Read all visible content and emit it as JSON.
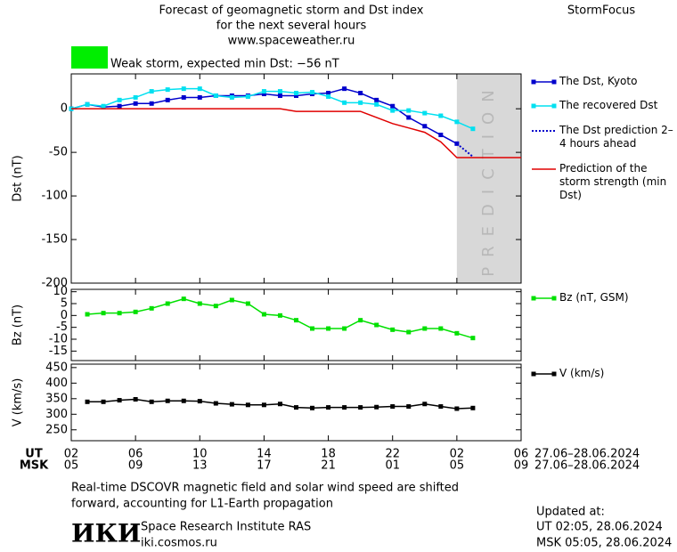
{
  "header": {
    "title": [
      "Forecast of geomagnetic storm and Dst index",
      "for the next several hours",
      "www.spaceweather.ru"
    ],
    "brand": "StormFocus",
    "status": "Weak storm, expected min Dst: −56 nT"
  },
  "chart_data": [
    {
      "type": "line",
      "y_label": "Dst (nT)",
      "xlim": [
        0,
        28
      ],
      "ylim": [
        -200,
        40
      ],
      "yticks": [
        0,
        -50,
        -100,
        -150,
        -200
      ],
      "prediction_region": {
        "x": [
          24,
          28
        ],
        "label": "PREDICTION",
        "color": "#d8d8d8"
      },
      "series": [
        {
          "name": "The Dst, Kyoto",
          "color": "#0000cc",
          "marker": "square",
          "line": "solid",
          "x": [
            0,
            1,
            2,
            3,
            4,
            5,
            6,
            7,
            8,
            9,
            10,
            11,
            12,
            13,
            14,
            15,
            16,
            17,
            18,
            19,
            20,
            21,
            22,
            23,
            24
          ],
          "values": [
            0,
            5,
            2,
            3,
            6,
            6,
            10,
            13,
            13,
            15,
            15,
            15,
            17,
            15,
            15,
            17,
            18,
            23,
            18,
            10,
            3,
            -10,
            -20,
            -30,
            -40
          ]
        },
        {
          "name": "The recovered Dst",
          "color": "#00e0f0",
          "marker": "square",
          "line": "solid",
          "x": [
            0,
            1,
            2,
            3,
            4,
            5,
            6,
            7,
            8,
            9,
            10,
            11,
            12,
            13,
            14,
            15,
            16,
            17,
            18,
            19,
            20,
            21,
            22,
            23,
            24,
            25
          ],
          "values": [
            0,
            5,
            3,
            10,
            13,
            20,
            22,
            23,
            23,
            15,
            13,
            14,
            20,
            20,
            18,
            19,
            14,
            7,
            7,
            5,
            -2,
            -2,
            -5,
            -8,
            -15,
            -23
          ]
        },
        {
          "name": "The Dst prediction 2–4 hours ahead",
          "color": "#0000cc",
          "marker": "none",
          "line": "dotted",
          "x": [
            24,
            25
          ],
          "values": [
            -40,
            -55
          ]
        },
        {
          "name": "Prediction of the storm strength (min Dst)",
          "color": "#e00000",
          "marker": "none",
          "line": "solid",
          "x": [
            0,
            13,
            14,
            18,
            19,
            20,
            21,
            22,
            23,
            24,
            28
          ],
          "values": [
            0,
            0,
            -3,
            -3,
            -10,
            -17,
            -22,
            -27,
            -38,
            -56,
            -56
          ]
        }
      ]
    },
    {
      "type": "line",
      "y_label": "Bz (nT)",
      "xlim": [
        0,
        28
      ],
      "ylim": [
        -19,
        11
      ],
      "yticks": [
        10,
        5,
        0,
        -5,
        -10,
        -15
      ],
      "series": [
        {
          "name": "Bz (nT, GSM)",
          "color": "#00e000",
          "marker": "square",
          "line": "solid",
          "x": [
            1,
            2,
            3,
            4,
            5,
            6,
            7,
            8,
            9,
            10,
            11,
            12,
            13,
            14,
            15,
            16,
            17,
            18,
            19,
            20,
            21,
            22,
            23,
            24,
            25
          ],
          "values": [
            0.5,
            1,
            1,
            1.5,
            3,
            5,
            7,
            5,
            4,
            6.5,
            5,
            0.5,
            0,
            -2,
            -5.5,
            -5.5,
            -5.5,
            -2,
            -4,
            -6,
            -7,
            -5.5,
            -5.5,
            -7.5,
            -9.5
          ]
        }
      ]
    },
    {
      "type": "line",
      "y_label": "V (km/s)",
      "xlim": [
        0,
        28
      ],
      "ylim": [
        215,
        461
      ],
      "yticks": [
        450,
        400,
        350,
        300,
        250
      ],
      "xticks": [
        {
          "value": 0,
          "label": "02"
        },
        {
          "value": 4,
          "label": "06"
        },
        {
          "value": 8,
          "label": "10"
        },
        {
          "value": 12,
          "label": "14"
        },
        {
          "value": 16,
          "label": "18"
        },
        {
          "value": 20,
          "label": "22"
        },
        {
          "value": 24,
          "label": "02"
        },
        {
          "value": 28,
          "label": "06"
        }
      ],
      "xticks_msk": [
        {
          "value": 0,
          "label": "05"
        },
        {
          "value": 4,
          "label": "09"
        },
        {
          "value": 8,
          "label": "13"
        },
        {
          "value": 12,
          "label": "17"
        },
        {
          "value": 16,
          "label": "21"
        },
        {
          "value": 20,
          "label": "01"
        },
        {
          "value": 24,
          "label": "05"
        },
        {
          "value": 28,
          "label": "09"
        }
      ],
      "series": [
        {
          "name": "V (km/s)",
          "color": "#000000",
          "marker": "square",
          "line": "solid",
          "x": [
            1,
            2,
            3,
            4,
            5,
            6,
            7,
            8,
            9,
            10,
            11,
            12,
            13,
            14,
            15,
            16,
            17,
            18,
            19,
            20,
            21,
            22,
            23,
            24,
            25
          ],
          "values": [
            340,
            340,
            345,
            348,
            340,
            343,
            343,
            342,
            335,
            332,
            330,
            330,
            333,
            322,
            320,
            322,
            322,
            322,
            323,
            325,
            325,
            333,
            325,
            318,
            320
          ]
        }
      ]
    }
  ],
  "footer": {
    "ut_label": "UT",
    "msk_label": "MSK",
    "ut_range": "27.06–28.06.2024",
    "msk_range": "27.06–28.06.2024",
    "note": [
      "Real-time DSCOVR magnetic field and solar wind speed are shifted",
      "forward, accounting for L1-Earth propagation"
    ],
    "logo": "ИКИ",
    "institute": "Space Research Institute RAS",
    "website": "iki.cosmos.ru",
    "updated_label": "Updated at:",
    "updated": [
      "UT   02:05, 28.06.2024",
      "MSK 05:05, 28.06.2024"
    ]
  }
}
